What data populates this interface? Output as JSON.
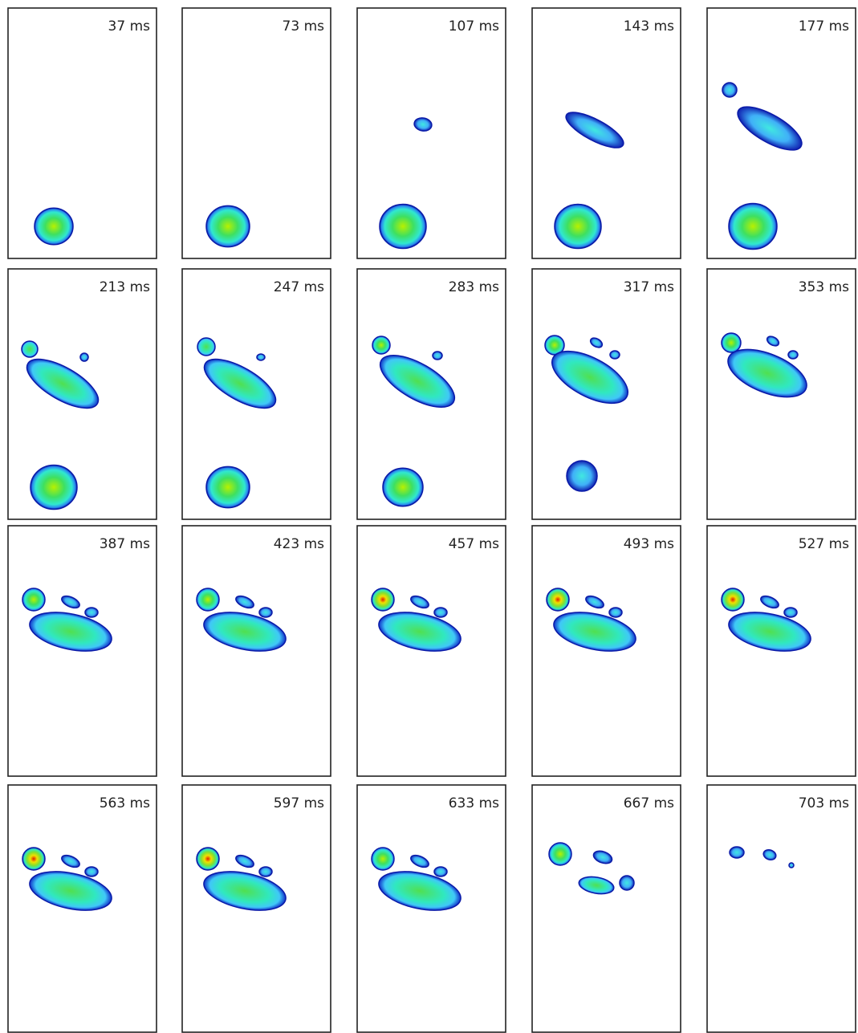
{
  "frames": [
    "37 ms",
    "73 ms",
    "107 ms",
    "143 ms",
    "177 ms",
    "213 ms",
    "247 ms",
    "283 ms",
    "317 ms",
    "353 ms",
    "387 ms",
    "423 ms",
    "457 ms",
    "493 ms",
    "527 ms",
    "563 ms",
    "597 ms",
    "633 ms",
    "667 ms",
    "703 ms"
  ]
}
